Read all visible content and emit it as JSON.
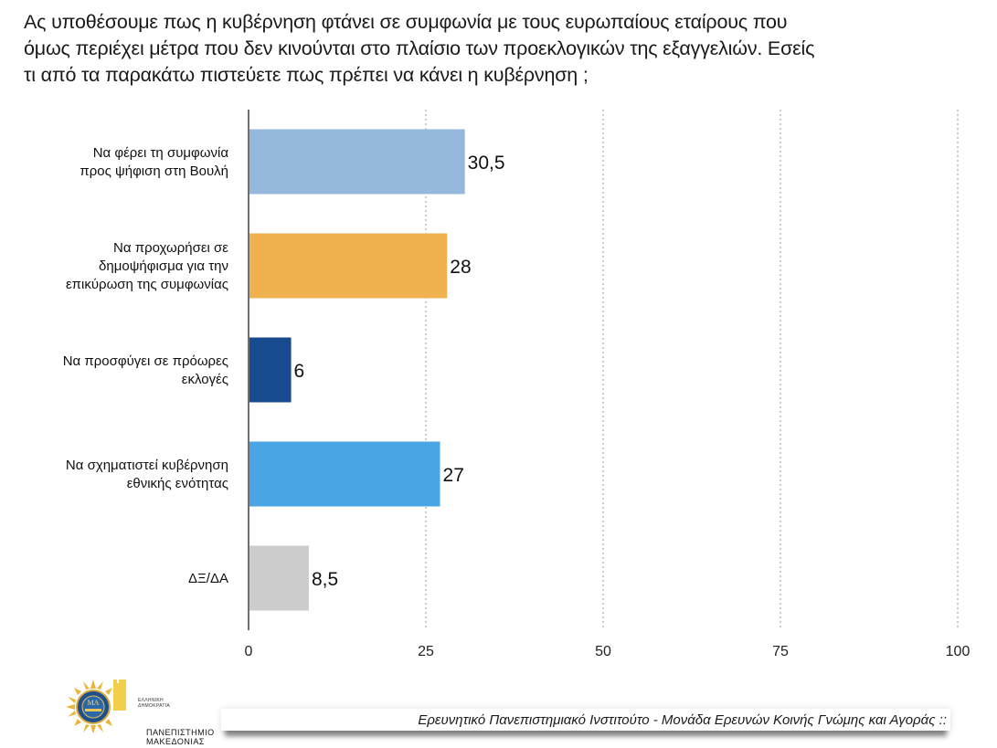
{
  "title_lines": [
    "Ας υποθέσουμε πως η κυβέρνηση φτάνει σε συμφωνία με τους ευρωπαίους εταίρους που",
    "όμως περιέχει μέτρα που δεν κινούνται στο πλαίσιο των προεκλογικών της εξαγγελιών. Εσείς",
    "τι από τα παρακάτω πιστεύετε πως πρέπει να κάνει η κυβέρνηση ;"
  ],
  "chart_data": {
    "type": "bar",
    "orientation": "horizontal",
    "title": "Ας υποθέσουμε πως η κυβέρνηση φτάνει σε συμφωνία με τους ευρωπαίους εταίρους που όμως περιέχει μέτρα που δεν κινούνται στο πλαίσιο των προεκλογικών της εξαγγελιών. Εσείς τι από τα παρακάτω πιστεύετε πως πρέπει να κάνει η κυβέρνηση ;",
    "xlabel": "",
    "ylabel": "",
    "xlim": [
      0,
      100
    ],
    "ticks": [
      0,
      25,
      50,
      75,
      100
    ],
    "tick_labels": [
      "0",
      "25",
      "50",
      "75",
      "100"
    ],
    "grid": "vertical dotted",
    "categories": [
      [
        "Να φέρει τη συμφωνία",
        "προς ψήφιση στη Βουλή"
      ],
      [
        "Να προχωρήσει σε",
        "δημοψήφισμα για την",
        "επικύρωση της συμφωνίας"
      ],
      [
        "Να προσφύγει σε πρόωρες",
        "εκλογές"
      ],
      [
        "Να σχηματιστεί κυβέρνηση",
        "εθνικής ενότητας"
      ],
      [
        "ΔΞ/ΔΑ"
      ]
    ],
    "values": [
      30.5,
      28,
      6,
      27,
      8.5
    ],
    "value_labels": [
      "30,5",
      "28",
      "6",
      "27",
      "8,5"
    ],
    "colors": [
      "#95b8dc",
      "#efb24f",
      "#174a8e",
      "#4aa5e4",
      "#cccccc"
    ]
  },
  "logo": {
    "name_line1": "ΠΑΝΕΠΙΣΤΗΜΙΟ",
    "name_line2": "ΜΑΚΕΔΟΝΙΑΣ",
    "small_line1": "ΕΛΛΗΝΙΚΗ",
    "small_line2": "ΔΗΜΟΚΡΑΤΙΑ"
  },
  "footer": {
    "text": "Ερευνητικό Πανεπιστημιακό Ινστιτούτο - Μονάδα Ερευνών Κοινής Γνώμης και Αγοράς ::"
  }
}
